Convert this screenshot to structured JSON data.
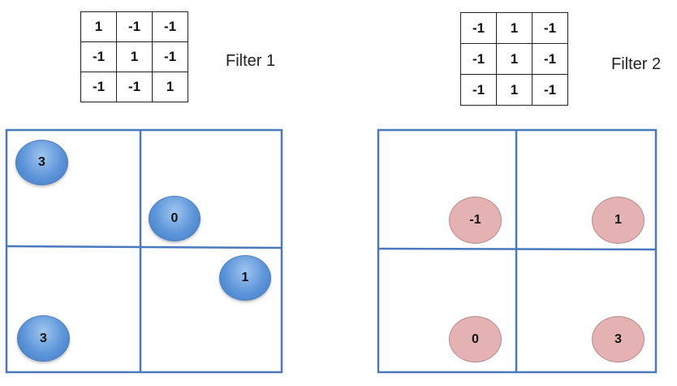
{
  "filter1": {
    "label": "Filter 1",
    "rows": [
      [
        "1",
        "-1",
        "-1"
      ],
      [
        "-1",
        "1",
        "-1"
      ],
      [
        "-1",
        "-1",
        "1"
      ]
    ]
  },
  "filter2": {
    "label": "Filter 2",
    "rows": [
      [
        "-1",
        "1",
        "-1"
      ],
      [
        "-1",
        "1",
        "-1"
      ],
      [
        "-1",
        "1",
        "-1"
      ]
    ]
  },
  "feature_map_1": {
    "quadrant_values": {
      "top_left": "3",
      "top_right": "0",
      "bottom_right": "1",
      "bottom_left": "3"
    },
    "color": "#5d95d9"
  },
  "feature_map_2": {
    "quadrant_values": {
      "top_left": "-1",
      "top_right": "1",
      "bottom_left": "0",
      "bottom_right": "3"
    },
    "color": "#e4b2b2"
  },
  "grid_color": "#4a78bd"
}
